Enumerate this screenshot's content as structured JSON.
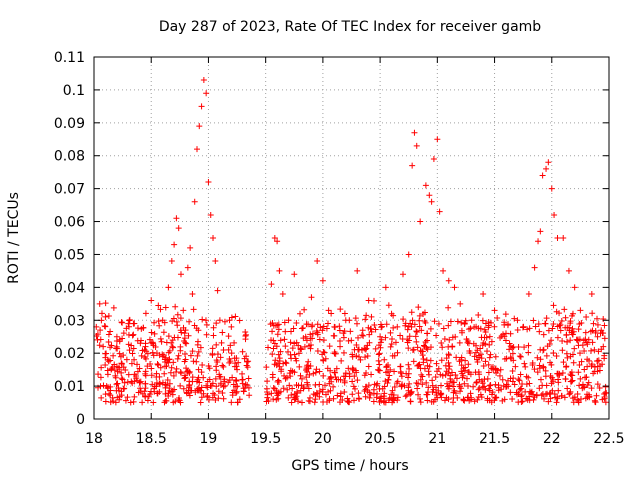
{
  "chart_data": {
    "type": "scatter",
    "title": "Day 287 of 2023, Rate Of TEC Index for receiver gamb",
    "xlabel": "GPS time / hours",
    "ylabel": "ROTI / TECUs",
    "xlim": [
      18,
      22.5
    ],
    "ylim": [
      0,
      0.11
    ],
    "x_ticks": [
      "18",
      "18.5",
      "19",
      "19.5",
      "20",
      "20.5",
      "21",
      "21.5",
      "22",
      "22.5"
    ],
    "y_ticks": [
      "0",
      "0.01",
      "0.02",
      "0.03",
      "0.04",
      "0.05",
      "0.06",
      "0.07",
      "0.08",
      "0.09",
      "0.1",
      "0.11"
    ],
    "grid": true,
    "marker": "+",
    "series_color": "#ff0000",
    "series": [
      {
        "name": "ROTI",
        "x": [
          18.02,
          18.05,
          18.08,
          18.12,
          18.15,
          18.2,
          18.25,
          18.3,
          18.35,
          18.4,
          18.45,
          18.5,
          18.55,
          18.6,
          18.62,
          18.65,
          18.68,
          18.7,
          18.72,
          18.74,
          18.76,
          18.78,
          18.8,
          18.82,
          18.84,
          18.86,
          18.88,
          18.9,
          18.92,
          18.94,
          18.96,
          18.98,
          19.0,
          19.02,
          19.04,
          19.06,
          19.08,
          19.1,
          19.2,
          19.25,
          19.3,
          19.55,
          19.58,
          19.6,
          19.62,
          19.65,
          19.7,
          19.75,
          19.8,
          19.85,
          19.9,
          19.95,
          20.0,
          20.05,
          20.1,
          20.15,
          20.2,
          20.3,
          20.4,
          20.5,
          20.55,
          20.6,
          20.65,
          20.7,
          20.75,
          20.78,
          20.8,
          20.82,
          20.85,
          20.9,
          20.93,
          20.95,
          20.97,
          21.0,
          21.02,
          21.05,
          21.1,
          21.15,
          21.2,
          21.3,
          21.4,
          21.5,
          21.6,
          21.7,
          21.75,
          21.8,
          21.85,
          21.88,
          21.9,
          21.92,
          21.95,
          21.97,
          22.0,
          22.02,
          22.05,
          22.1,
          22.15,
          22.2,
          22.25,
          22.3,
          22.35,
          22.4,
          22.45
        ],
        "y": [
          0.028,
          0.035,
          0.022,
          0.018,
          0.015,
          0.025,
          0.012,
          0.029,
          0.018,
          0.011,
          0.022,
          0.036,
          0.02,
          0.03,
          0.016,
          0.04,
          0.048,
          0.053,
          0.061,
          0.058,
          0.044,
          0.033,
          0.027,
          0.046,
          0.052,
          0.038,
          0.066,
          0.082,
          0.089,
          0.095,
          0.103,
          0.099,
          0.072,
          0.062,
          0.055,
          0.048,
          0.039,
          0.03,
          0.028,
          0.015,
          0.012,
          0.041,
          0.055,
          0.054,
          0.045,
          0.038,
          0.03,
          0.044,
          0.032,
          0.025,
          0.037,
          0.048,
          0.042,
          0.033,
          0.028,
          0.022,
          0.03,
          0.045,
          0.036,
          0.025,
          0.04,
          0.032,
          0.028,
          0.044,
          0.05,
          0.077,
          0.087,
          0.083,
          0.06,
          0.071,
          0.068,
          0.066,
          0.079,
          0.085,
          0.063,
          0.045,
          0.042,
          0.04,
          0.035,
          0.03,
          0.038,
          0.033,
          0.026,
          0.03,
          0.028,
          0.038,
          0.046,
          0.054,
          0.057,
          0.074,
          0.076,
          0.078,
          0.07,
          0.062,
          0.055,
          0.055,
          0.045,
          0.04,
          0.033,
          0.031,
          0.038,
          0.025,
          0.022
        ]
      }
    ],
    "baseline_band": {
      "y_min": 0.005,
      "y_max": 0.03,
      "x_gaps": [
        [
          19.36,
          19.5
        ]
      ]
    }
  }
}
